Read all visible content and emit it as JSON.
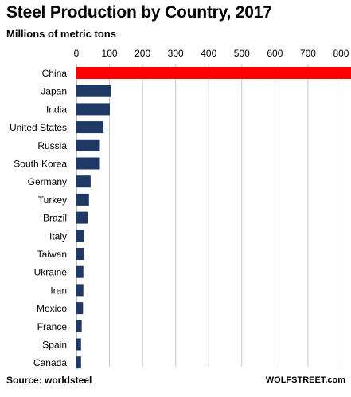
{
  "title": "Steel Production by Country, 2017",
  "subtitle": "Millions of metric tons",
  "source": "Source: worldsteel",
  "brand": "WOLFSTREET.com",
  "colors": {
    "highlight": "#ff0000",
    "bar": "#1f3864",
    "grid": "#c8c8c8",
    "axis": "#7f7f7f"
  },
  "chart_data": {
    "type": "bar",
    "orientation": "horizontal",
    "xlim": [
      0,
      800
    ],
    "ticks": [
      "0",
      "100",
      "200",
      "300",
      "400",
      "500",
      "600",
      "700",
      "800"
    ],
    "tick_values": [
      0,
      100,
      200,
      300,
      400,
      500,
      600,
      700,
      800
    ],
    "grid": true,
    "categories": [
      "China",
      "Japan",
      "India",
      "United States",
      "Russia",
      "South Korea",
      "Germany",
      "Turkey",
      "Brazil",
      "Italy",
      "Taiwan",
      "Ukraine",
      "Iran",
      "Mexico",
      "France",
      "Spain",
      "Canada"
    ],
    "values": [
      832,
      105,
      101,
      82,
      71,
      71,
      43,
      38,
      34,
      24,
      23,
      21,
      21,
      20,
      16,
      14,
      14
    ]
  }
}
